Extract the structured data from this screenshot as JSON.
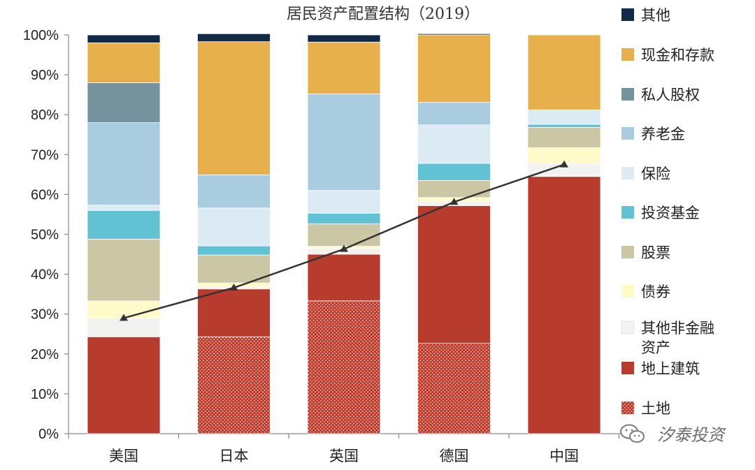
{
  "chart_data": {
    "type": "bar",
    "stacked": true,
    "title": "居民资产配置结构（2019）",
    "categories": [
      "美国",
      "日本",
      "英国",
      "德国",
      "中国"
    ],
    "ylim": [
      0,
      100
    ],
    "yticks": [
      "0%",
      "10%",
      "20%",
      "30%",
      "40%",
      "50%",
      "60%",
      "70%",
      "80%",
      "90%",
      "100%"
    ],
    "grid": false,
    "legend_position": "right",
    "series": [
      {
        "name": "土地",
        "color": "#c0392b",
        "pattern": true,
        "values": [
          0,
          24.3,
          33.3,
          22.7,
          0
        ]
      },
      {
        "name": "地上建筑",
        "color": "#b83c2e",
        "values": [
          24.3,
          12.0,
          11.7,
          34.5,
          64.5
        ]
      },
      {
        "name": "其他非金融资产",
        "color": "#f2f2f0",
        "values": [
          4.7,
          0.5,
          1.5,
          1.0,
          3.2
        ]
      },
      {
        "name": "债券",
        "color": "#fffbc8",
        "values": [
          4.3,
          1.0,
          0.5,
          1.0,
          4.0
        ]
      },
      {
        "name": "股票",
        "color": "#cbc6a4",
        "values": [
          15.5,
          7.0,
          5.6,
          4.3,
          5.1
        ]
      },
      {
        "name": "投资基金",
        "color": "#62c1d3",
        "values": [
          7.2,
          2.3,
          2.7,
          4.3,
          0.8
        ]
      },
      {
        "name": "保险",
        "color": "#dcebf3",
        "values": [
          1.3,
          9.5,
          5.7,
          9.6,
          3.6
        ]
      },
      {
        "name": "养老金",
        "color": "#a9cce0",
        "values": [
          20.7,
          8.3,
          24.2,
          5.7,
          0
        ]
      },
      {
        "name": "私人股权",
        "color": "#74939d",
        "values": [
          10.0,
          0,
          0,
          0,
          0
        ]
      },
      {
        "name": "现金和存款",
        "color": "#e8b04d",
        "values": [
          10.0,
          33.4,
          13.0,
          16.9,
          18.8
        ]
      },
      {
        "name": "其他",
        "color": "#102a47",
        "values": [
          2.0,
          2.0,
          1.8,
          0.3,
          0
        ]
      }
    ],
    "line": {
      "type": "line",
      "color": "#333333",
      "values": [
        29.0,
        36.6,
        46.3,
        58.1,
        67.5
      ]
    }
  },
  "watermark": {
    "text": "汐泰投资"
  }
}
